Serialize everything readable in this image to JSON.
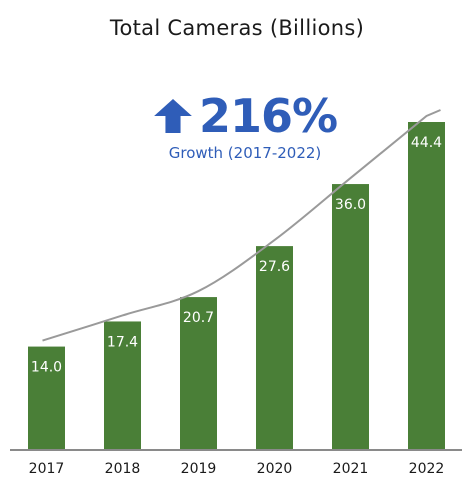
{
  "chart_data": {
    "type": "bar",
    "title": "Total Cameras (Billions)",
    "categories": [
      "2017",
      "2018",
      "2019",
      "2020",
      "2021",
      "2022"
    ],
    "values": [
      14.0,
      17.4,
      20.7,
      27.6,
      36.0,
      44.4
    ],
    "data_labels": [
      "14.0",
      "17.4",
      "20.7",
      "27.6",
      "36.0",
      "44.4"
    ],
    "xlabel": "",
    "ylabel": "",
    "ylim": [
      0,
      50
    ],
    "grid": false,
    "trendline": true,
    "colors": {
      "bar": "#4a7f37",
      "trend": "#9a9a9a",
      "label": "#ffffff",
      "axis": "#8a8a8a"
    }
  },
  "highlight": {
    "value": "216%",
    "caption": "Growth (2017-2022)",
    "icon": "up-arrow-icon",
    "color": "#2f5db8"
  }
}
